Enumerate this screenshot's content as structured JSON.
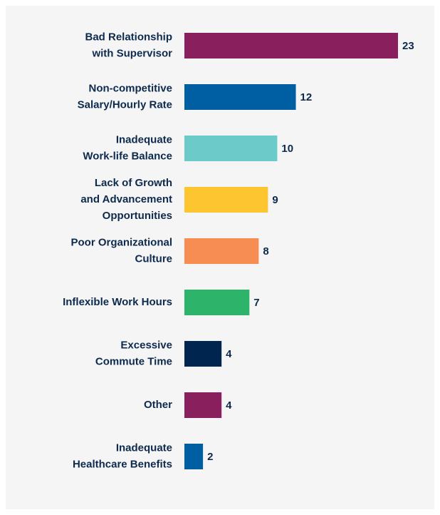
{
  "chart_data": {
    "type": "bar",
    "orientation": "horizontal",
    "categories": [
      "Bad Relationship\nwith Supervisor",
      "Non-competitive\nSalary/Hourly Rate",
      "Inadequate\nWork-life Balance",
      "Lack of Growth\nand Advancement\nOpportunities",
      "Poor Organizational\nCulture",
      "Inflexible Work Hours",
      "Excessive\nCommute Time",
      "Other",
      "Inadequate\nHealthcare Benefits"
    ],
    "values": [
      23,
      12,
      10,
      9,
      8,
      7,
      4,
      4,
      2
    ],
    "colors": [
      "#8a1f5e",
      "#005ea2",
      "#6ccbc9",
      "#fdc530",
      "#f78d52",
      "#2eb36b",
      "#00264f",
      "#8a1f5e",
      "#005ea2"
    ]
  }
}
